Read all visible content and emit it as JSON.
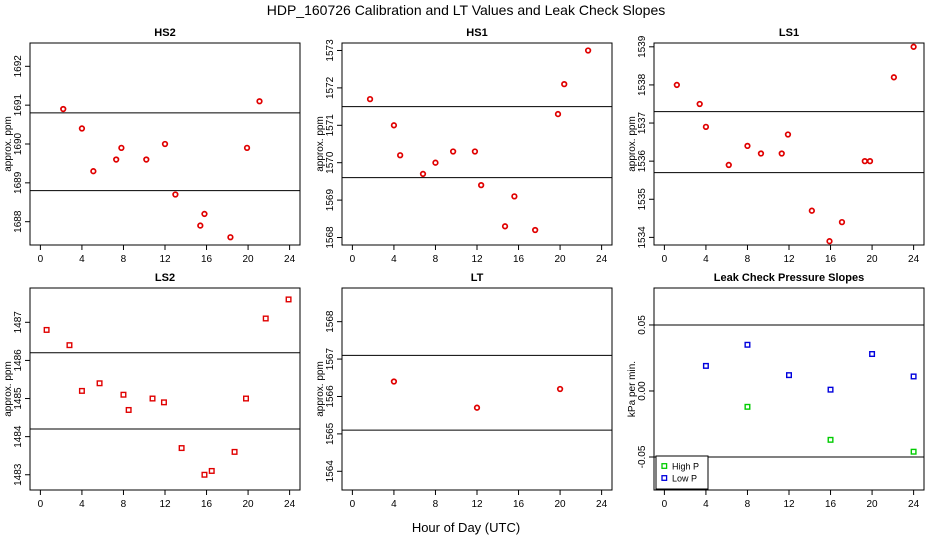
{
  "page": {
    "title": "HDP_160726  Calibration and LT Values and Leak Check Slopes",
    "xlabel": "Hour of Day (UTC)"
  },
  "colors": {
    "red": "#e00000",
    "green": "#00cc00",
    "blue": "#0000dd",
    "axis": "#000000"
  },
  "chart_data": [
    {
      "type": "scatter",
      "title": "HS2",
      "ylabel": "approx. ppm",
      "xlim": [
        -1,
        25
      ],
      "ylim": [
        1687.4,
        1692.6
      ],
      "xticks": [
        "0",
        "4",
        "8",
        "12",
        "16",
        "20",
        "24"
      ],
      "xtick_values": [
        0,
        4,
        8,
        12,
        16,
        20,
        24
      ],
      "yticks": [
        "1688",
        "1689",
        "1690",
        "1691",
        "1692"
      ],
      "ytick_values": [
        1688,
        1689,
        1690,
        1691,
        1692
      ],
      "hlines": [
        1690.8,
        1688.8
      ],
      "series": [
        {
          "name": "values",
          "marker": "circle",
          "color": "red",
          "x": [
            2.2,
            4,
            5.1,
            7.3,
            7.8,
            10.2,
            12,
            13,
            15.4,
            15.8,
            18.3,
            19.9,
            21.1
          ],
          "y": [
            1690.9,
            1690.4,
            1689.3,
            1689.6,
            1689.9,
            1689.6,
            1690.0,
            1688.7,
            1687.9,
            1688.2,
            1687.6,
            1689.9,
            1691.1
          ]
        }
      ]
    },
    {
      "type": "scatter",
      "title": "HS1",
      "ylabel": "approx. ppm",
      "xlim": [
        -1,
        25
      ],
      "ylim": [
        1567.8,
        1573.2
      ],
      "xticks": [
        "0",
        "4",
        "8",
        "12",
        "16",
        "20",
        "24"
      ],
      "xtick_values": [
        0,
        4,
        8,
        12,
        16,
        20,
        24
      ],
      "yticks": [
        "1568",
        "1569",
        "1570",
        "1571",
        "1572",
        "1573"
      ],
      "ytick_values": [
        1568,
        1569,
        1570,
        1571,
        1572,
        1573
      ],
      "hlines": [
        1571.5,
        1569.6
      ],
      "series": [
        {
          "name": "values",
          "marker": "circle",
          "color": "red",
          "x": [
            1.7,
            4,
            4.6,
            6.8,
            8,
            9.7,
            11.8,
            12.4,
            14.7,
            15.6,
            17.6,
            19.8,
            20.4,
            22.7
          ],
          "y": [
            1571.7,
            1571.0,
            1570.2,
            1569.7,
            1570.0,
            1570.3,
            1570.3,
            1569.4,
            1568.3,
            1569.1,
            1568.2,
            1571.3,
            1572.1,
            1573.0
          ]
        }
      ]
    },
    {
      "type": "scatter",
      "title": "LS1",
      "ylabel": "approx. ppm",
      "xlim": [
        -1,
        25
      ],
      "ylim": [
        1533.8,
        1539.1
      ],
      "xticks": [
        "0",
        "4",
        "8",
        "12",
        "16",
        "20",
        "24"
      ],
      "xtick_values": [
        0,
        4,
        8,
        12,
        16,
        20,
        24
      ],
      "yticks": [
        "1534",
        "1535",
        "1536",
        "1537",
        "1538",
        "1539"
      ],
      "ytick_values": [
        1534,
        1535,
        1536,
        1537,
        1538,
        1539
      ],
      "hlines": [
        1537.3,
        1535.7
      ],
      "series": [
        {
          "name": "values",
          "marker": "circle",
          "color": "red",
          "x": [
            1.2,
            3.4,
            4,
            6.2,
            8,
            9.3,
            11.3,
            11.9,
            14.2,
            15.9,
            17.1,
            19.3,
            19.8,
            22.1,
            24
          ],
          "y": [
            1538.0,
            1537.5,
            1536.9,
            1535.9,
            1536.4,
            1536.2,
            1536.2,
            1536.7,
            1534.7,
            1533.9,
            1534.4,
            1536.0,
            1536.0,
            1538.2,
            1539.0
          ]
        }
      ]
    },
    {
      "type": "scatter",
      "title": "LS2",
      "ylabel": "approx. ppm",
      "xlim": [
        -1,
        25
      ],
      "ylim": [
        1482.6,
        1487.9
      ],
      "xticks": [
        "0",
        "4",
        "8",
        "12",
        "16",
        "20",
        "24"
      ],
      "xtick_values": [
        0,
        4,
        8,
        12,
        16,
        20,
        24
      ],
      "yticks": [
        "1483",
        "1484",
        "1485",
        "1486",
        "1487"
      ],
      "ytick_values": [
        1483,
        1484,
        1485,
        1486,
        1487
      ],
      "hlines": [
        1486.2,
        1484.2
      ],
      "series": [
        {
          "name": "values",
          "marker": "square",
          "color": "red",
          "x": [
            0.6,
            2.8,
            4,
            5.7,
            8,
            8.5,
            10.8,
            11.9,
            13.6,
            15.8,
            16.5,
            18.7,
            19.8,
            21.7,
            23.9
          ],
          "y": [
            1486.8,
            1486.4,
            1485.2,
            1485.4,
            1485.1,
            1484.7,
            1485.0,
            1484.9,
            1483.7,
            1483.0,
            1483.1,
            1483.6,
            1485.0,
            1487.1,
            1487.6
          ]
        }
      ]
    },
    {
      "type": "scatter",
      "title": "LT",
      "ylabel": "approx. ppm",
      "xlim": [
        -1,
        25
      ],
      "ylim": [
        1563.5,
        1568.9
      ],
      "xticks": [
        "0",
        "4",
        "8",
        "12",
        "16",
        "20",
        "24"
      ],
      "xtick_values": [
        0,
        4,
        8,
        12,
        16,
        20,
        24
      ],
      "yticks": [
        "1564",
        "1565",
        "1566",
        "1567",
        "1568"
      ],
      "ytick_values": [
        1564,
        1565,
        1566,
        1567,
        1568
      ],
      "hlines": [
        1567.1,
        1565.1
      ],
      "series": [
        {
          "name": "values",
          "marker": "circle",
          "color": "red",
          "x": [
            4,
            12,
            20
          ],
          "y": [
            1566.4,
            1565.7,
            1566.2
          ]
        }
      ]
    },
    {
      "type": "scatter",
      "title": "Leak Check Pressure Slopes",
      "ylabel": "kPa per min.",
      "xlim": [
        -1,
        25
      ],
      "ylim": [
        -0.075,
        0.078
      ],
      "xticks": [
        "0",
        "4",
        "8",
        "12",
        "16",
        "20",
        "24"
      ],
      "xtick_values": [
        0,
        4,
        8,
        12,
        16,
        20,
        24
      ],
      "yticks": [
        "-0.05",
        "0.00",
        "0.05"
      ],
      "ytick_values": [
        -0.05,
        0.0,
        0.05
      ],
      "hlines": [
        0.05,
        -0.05
      ],
      "legend": {
        "position": "bottom-left",
        "entries": [
          "High P",
          "Low P"
        ]
      },
      "series": [
        {
          "name": "High P",
          "marker": "square",
          "color": "green",
          "x": [
            8,
            16,
            24
          ],
          "y": [
            -0.012,
            -0.037,
            -0.046
          ]
        },
        {
          "name": "Low P",
          "marker": "square",
          "color": "blue",
          "x": [
            4,
            8,
            12,
            16,
            20,
            24
          ],
          "y": [
            0.019,
            0.035,
            0.012,
            0.001,
            0.028,
            0.011
          ]
        }
      ]
    }
  ]
}
